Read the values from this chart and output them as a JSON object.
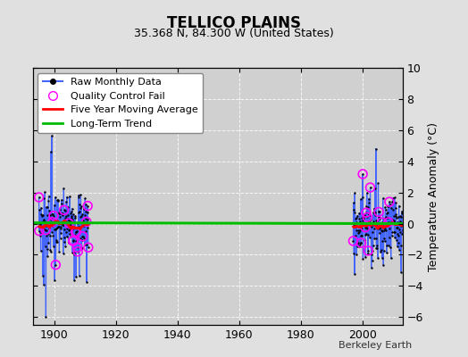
{
  "title": "TELLICO PLAINS",
  "subtitle": "35.368 N, 84.300 W (United States)",
  "ylabel": "Temperature Anomaly (°C)",
  "attribution": "Berkeley Earth",
  "xlim": [
    1893,
    2013
  ],
  "ylim": [
    -6.5,
    10
  ],
  "yticks": [
    -6,
    -4,
    -2,
    0,
    2,
    4,
    6,
    8,
    10
  ],
  "xticks": [
    1900,
    1920,
    1940,
    1960,
    1980,
    2000
  ],
  "bg_color": "#e0e0e0",
  "plot_bg_color": "#d0d0d0",
  "line_color": "#4466ff",
  "dot_color": "#000000",
  "qc_color": "magenta",
  "ma_color": "red",
  "trend_color": "#00bb00",
  "early_start": 1895,
  "early_end": 1911,
  "late_start": 1997,
  "late_end": 2013,
  "n_early": 192,
  "n_late": 192,
  "seed": 7,
  "title_fontsize": 12,
  "subtitle_fontsize": 9,
  "tick_fontsize": 9,
  "legend_fontsize": 8
}
